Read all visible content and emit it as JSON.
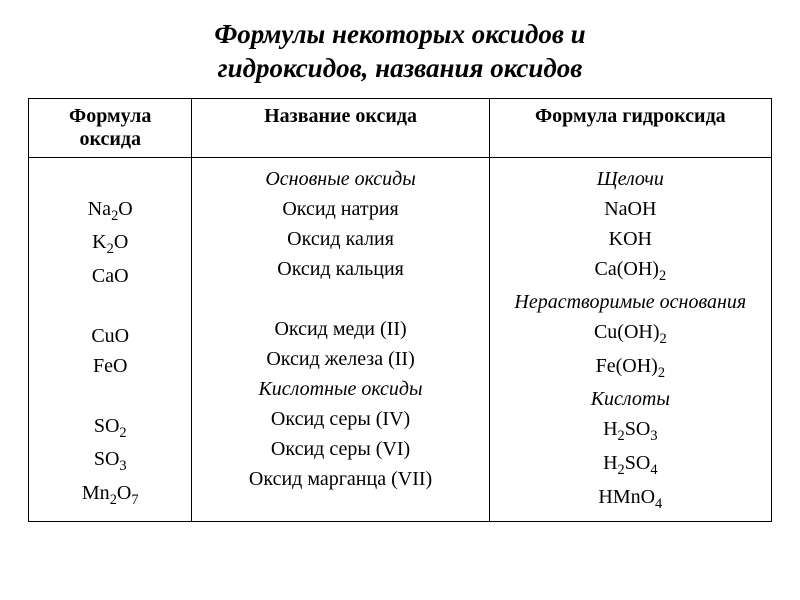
{
  "title": {
    "line1": "Формулы некоторых оксидов и",
    "line2": "гидроксидов, названия оксидов"
  },
  "headers": {
    "oxide_formula_l1": "Формула",
    "oxide_formula_l2": "оксида",
    "oxide_name": "Название оксида",
    "hydroxide_formula": "Формула гидроксида"
  },
  "sections": {
    "basic_oxides": "Основные оксиды",
    "alkalis": "Щелочи",
    "insoluble_bases": "Нерастворимые основания",
    "acidic_oxides": "Кислотные оксиды",
    "acids": "Кислоты"
  },
  "rows": {
    "na2o": {
      "formula": "Na₂O",
      "name": "Оксид натрия",
      "hydroxide": "NaOH"
    },
    "k2o": {
      "formula": "K₂O",
      "name": "Оксид калия",
      "hydroxide": "KOH"
    },
    "cao": {
      "formula": "CaO",
      "name": "Оксид кальция",
      "hydroxide": "Ca(OH)₂"
    },
    "cuo": {
      "formula": "CuO",
      "name": "Оксид меди (II)",
      "hydroxide": "Cu(OH)₂"
    },
    "feo": {
      "formula": "FeO",
      "name": "Оксид железа (II)",
      "hydroxide": "Fe(OH)₂"
    },
    "so2": {
      "formula": "SO₂",
      "name": "Оксид серы (IV)",
      "hydroxide": "H₂SO₃"
    },
    "so3": {
      "formula": "SO₃",
      "name": "Оксид серы (VI)",
      "hydroxide": "H₂SO₄"
    },
    "mn2o7": {
      "formula": "Mn₂O₇",
      "name": "Оксид марганца (VII)",
      "hydroxide": "HMnO₄"
    }
  },
  "style": {
    "background_color": "#ffffff",
    "text_color": "#000000",
    "border_color": "#000000",
    "title_fontsize": 27,
    "header_fontsize": 20,
    "cell_fontsize": 20,
    "font_family": "Times New Roman",
    "col_widths_pct": [
      22,
      40,
      38
    ]
  }
}
